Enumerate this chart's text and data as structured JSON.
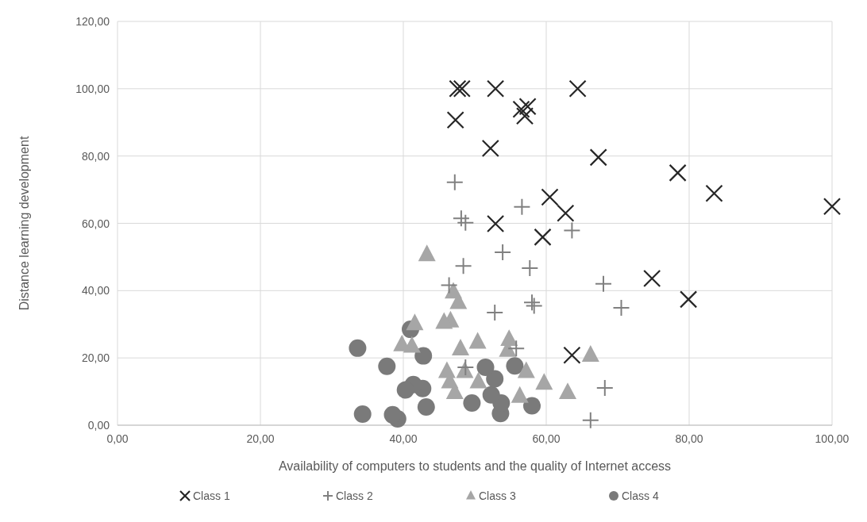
{
  "chart_data": {
    "type": "scatter",
    "xlabel": "Availability of computers to students and the quality of Internet access",
    "ylabel": "Distance learning development",
    "xlim": [
      0,
      100
    ],
    "ylim": [
      0,
      120
    ],
    "xticks": [
      {
        "value": 0,
        "label": "0,00"
      },
      {
        "value": 20,
        "label": "20,00"
      },
      {
        "value": 40,
        "label": "40,00"
      },
      {
        "value": 60,
        "label": "60,00"
      },
      {
        "value": 80,
        "label": "80,00"
      },
      {
        "value": 100,
        "label": "100,00"
      }
    ],
    "yticks": [
      {
        "value": 0,
        "label": "0,00"
      },
      {
        "value": 20,
        "label": "20,00"
      },
      {
        "value": 40,
        "label": "40,00"
      },
      {
        "value": 60,
        "label": "60,00"
      },
      {
        "value": 80,
        "label": "80,00"
      },
      {
        "value": 100,
        "label": "100,00"
      },
      {
        "value": 120,
        "label": "120,00"
      }
    ],
    "grid": true,
    "legend": "bottom",
    "series": [
      {
        "name": "Class 1",
        "color": "#262626",
        "marker": "x",
        "x": [
          47.6,
          48.2,
          52.9,
          64.4,
          47.3,
          56.5,
          57.0,
          57.4,
          52.2,
          67.3,
          60.5,
          62.7,
          52.9,
          59.5,
          78.4,
          83.5,
          100,
          74.8,
          79.9,
          63.6
        ],
        "values": [
          100,
          100,
          100,
          100,
          90.7,
          93.9,
          91.9,
          94.7,
          82.3,
          79.6,
          67.8,
          63.0,
          59.9,
          55.9,
          75.0,
          68.9,
          65.0,
          43.6,
          37.4,
          20.8
        ]
      },
      {
        "name": "Class 2",
        "color": "#808080",
        "marker": "cross",
        "x": [
          47.2,
          48.1,
          48.7,
          56.6,
          63.6,
          53.9,
          48.4,
          57.7,
          46.4,
          58.0,
          58.3,
          52.8,
          68.0,
          70.5,
          68.2,
          66.2,
          48.7,
          55.8
        ],
        "values": [
          72.2,
          61.5,
          60.2,
          64.9,
          57.9,
          51.4,
          47.3,
          46.7,
          41.6,
          36.5,
          35.5,
          33.5,
          42.0,
          34.9,
          11.1,
          1.5,
          17.2,
          22.8
        ]
      },
      {
        "name": "Class 3",
        "color": "#a6a6a6",
        "marker": "triangle",
        "x": [
          43.3,
          47.0,
          47.7,
          45.7,
          46.6,
          41.6,
          39.8,
          41.2,
          48.0,
          50.4,
          54.8,
          54.6,
          46.1,
          48.6,
          50.5,
          47.2,
          57.2,
          59.7,
          63.0,
          66.2,
          56.3,
          46.5
        ],
        "values": [
          50.7,
          39.6,
          36.5,
          30.6,
          31.0,
          30.2,
          23.9,
          23.5,
          22.7,
          24.7,
          25.5,
          22.3,
          16.0,
          16.0,
          12.9,
          9.7,
          16.0,
          12.5,
          9.7,
          20.8,
          8.6,
          12.9
        ]
      },
      {
        "name": "Class 4",
        "color": "#7a7a7a",
        "marker": "circle",
        "x": [
          33.6,
          37.7,
          41.0,
          42.8,
          40.3,
          41.4,
          42.7,
          43.2,
          34.3,
          38.5,
          39.2,
          49.6,
          51.5,
          52.8,
          52.3,
          53.7,
          53.6,
          55.6,
          58.0
        ],
        "values": [
          22.9,
          17.5,
          28.5,
          20.6,
          10.5,
          12.1,
          10.9,
          5.4,
          3.3,
          3.1,
          1.9,
          6.6,
          17.2,
          13.8,
          9.0,
          6.6,
          3.5,
          17.6,
          5.8
        ]
      }
    ]
  }
}
